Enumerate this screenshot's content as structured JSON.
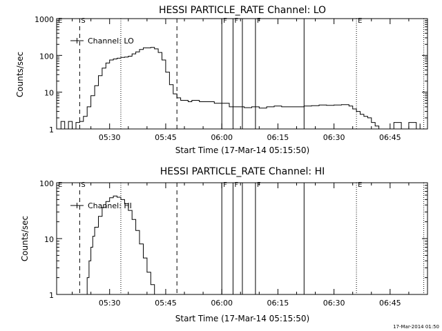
{
  "timestamp": "17-Mar-2014 01:50",
  "chart_data": [
    {
      "type": "line",
      "title": "HESSI PARTICLE_RATE Channel: LO",
      "xlabel": "Start Time (17-Mar-14 05:15:50)",
      "ylabel": "Counts/sec",
      "yscale": "log",
      "xlim": [
        "05:15:50",
        "06:55:00"
      ],
      "ylim": [
        1,
        1000
      ],
      "xticks": [
        "05:30",
        "05:45",
        "06:00",
        "06:15",
        "06:30",
        "06:45"
      ],
      "yticks": [
        "1",
        "10",
        "100",
        "1000"
      ],
      "legend": "Channel: LO",
      "legend_position": "top-left",
      "markers": [
        {
          "label": "E",
          "time": "05:15:50",
          "style": "dotted"
        },
        {
          "label": "S",
          "time": "05:22:00",
          "style": "dashed"
        },
        {
          "label": "",
          "time": "05:33:00",
          "style": "dotted"
        },
        {
          "label": "",
          "time": "05:48:00",
          "style": "dashed"
        },
        {
          "label": "F",
          "time": "06:00:00",
          "style": "solid"
        },
        {
          "label": "F",
          "time": "06:03:00",
          "style": "solid"
        },
        {
          "label": "",
          "time": "06:05:30",
          "style": "solid"
        },
        {
          "label": "F",
          "time": "06:09:00",
          "style": "solid"
        },
        {
          "label": "",
          "time": "06:22:00",
          "style": "solid"
        },
        {
          "label": "E",
          "time": "06:36:00",
          "style": "dotted"
        },
        {
          "label": "",
          "time": "06:54:00",
          "style": "dotted"
        }
      ],
      "series": [
        {
          "name": "Channel: LO",
          "x": [
            "05:16:00",
            "05:17:00",
            "05:18:00",
            "05:19:00",
            "05:20:00",
            "05:21:00",
            "05:22:00",
            "05:22:30",
            "05:23:00",
            "05:24:00",
            "05:25:00",
            "05:26:00",
            "05:27:00",
            "05:28:00",
            "05:29:00",
            "05:30:00",
            "05:31:00",
            "05:32:00",
            "05:33:00",
            "05:34:00",
            "05:35:00",
            "05:36:00",
            "05:37:00",
            "05:38:00",
            "05:39:00",
            "05:40:00",
            "05:41:00",
            "05:42:00",
            "05:43:00",
            "05:44:00",
            "05:45:00",
            "05:46:00",
            "05:47:00",
            "05:48:00",
            "05:49:00",
            "05:50:00",
            "05:51:00",
            "05:52:00",
            "05:54:00",
            "05:56:00",
            "05:58:00",
            "06:00:00",
            "06:02:00",
            "06:04:00",
            "06:06:00",
            "06:08:00",
            "06:10:00",
            "06:12:00",
            "06:14:00",
            "06:16:00",
            "06:18:00",
            "06:20:00",
            "06:22:00",
            "06:24:00",
            "06:26:00",
            "06:28:00",
            "06:30:00",
            "06:32:00",
            "06:34:00",
            "06:35:00",
            "06:36:00",
            "06:37:00",
            "06:38:00",
            "06:39:00",
            "06:40:00",
            "06:41:00",
            "06:42:00",
            "06:44:00",
            "06:46:00",
            "06:48:00",
            "06:50:00",
            "06:52:00",
            "06:53:00"
          ],
          "values": [
            1,
            1.6,
            1,
            1.6,
            1,
            1.5,
            1.6,
            1.6,
            2.2,
            4,
            8,
            15,
            28,
            45,
            62,
            75,
            80,
            84,
            88,
            90,
            95,
            110,
            125,
            145,
            160,
            160,
            165,
            150,
            120,
            75,
            35,
            16,
            9,
            7,
            6,
            6,
            5.5,
            6,
            5.5,
            5.5,
            5,
            5,
            4,
            4,
            3.8,
            4,
            3.7,
            4,
            4.2,
            4,
            4,
            4,
            4.2,
            4.3,
            4.5,
            4.4,
            4.5,
            4.6,
            4.2,
            3.5,
            3,
            2.5,
            2.2,
            2,
            1.5,
            1.2,
            1,
            1,
            1.5,
            1,
            1.5,
            1,
            1.4
          ]
        }
      ]
    },
    {
      "type": "line",
      "title": "HESSI PARTICLE_RATE Channel: HI",
      "xlabel": "Start Time (17-Mar-14 05:15:50)",
      "ylabel": "Counts/sec",
      "yscale": "log",
      "xlim": [
        "05:15:50",
        "06:55:00"
      ],
      "ylim": [
        1,
        100
      ],
      "xticks": [
        "05:30",
        "05:45",
        "06:00",
        "06:15",
        "06:30",
        "06:45"
      ],
      "yticks": [
        "1",
        "10",
        "100"
      ],
      "legend": "Channel: HI",
      "legend_position": "top-left",
      "markers": [
        {
          "label": "E",
          "time": "05:15:50",
          "style": "dotted"
        },
        {
          "label": "S",
          "time": "05:22:00",
          "style": "dashed"
        },
        {
          "label": "",
          "time": "05:33:00",
          "style": "dotted"
        },
        {
          "label": "",
          "time": "05:48:00",
          "style": "dashed"
        },
        {
          "label": "F",
          "time": "06:00:00",
          "style": "solid"
        },
        {
          "label": "F",
          "time": "06:03:00",
          "style": "solid"
        },
        {
          "label": "",
          "time": "06:05:30",
          "style": "solid"
        },
        {
          "label": "F",
          "time": "06:09:00",
          "style": "solid"
        },
        {
          "label": "",
          "time": "06:22:00",
          "style": "solid"
        },
        {
          "label": "E",
          "time": "06:36:00",
          "style": "dotted"
        },
        {
          "label": "",
          "time": "06:54:00",
          "style": "dotted"
        }
      ],
      "series": [
        {
          "name": "Channel: HI",
          "x": [
            "05:23:30",
            "05:24:00",
            "05:24:30",
            "05:25:00",
            "05:25:30",
            "05:26:00",
            "05:27:00",
            "05:28:00",
            "05:29:00",
            "05:30:00",
            "05:31:00",
            "05:32:00",
            "05:33:00",
            "05:34:00",
            "05:35:00",
            "05:36:00",
            "05:37:00",
            "05:38:00",
            "05:39:00",
            "05:40:00",
            "05:41:00",
            "05:42:00"
          ],
          "values": [
            1,
            2,
            4,
            7,
            11,
            16,
            25,
            36,
            46,
            54,
            58,
            55,
            50,
            42,
            32,
            22,
            14,
            8,
            4.5,
            2.5,
            1.5,
            1
          ]
        }
      ]
    }
  ]
}
